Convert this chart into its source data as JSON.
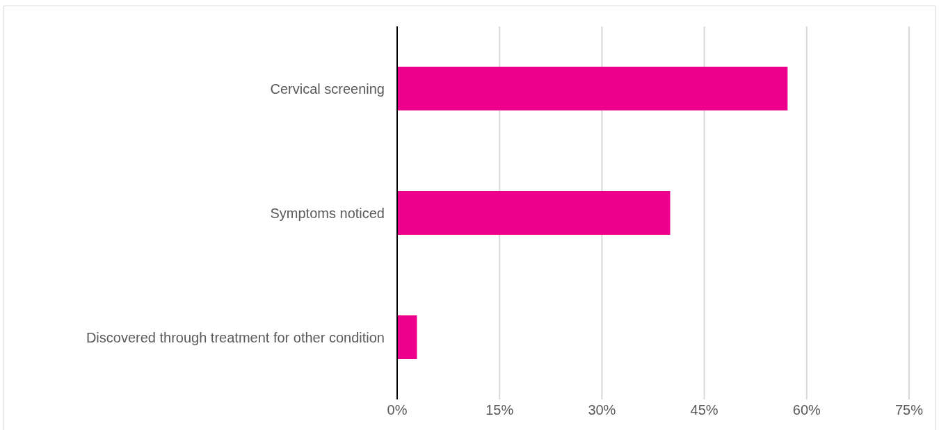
{
  "chart_data": {
    "type": "bar",
    "orientation": "horizontal",
    "categories": [
      "Cervical screening",
      "Symptoms noticed",
      "Discovered through treatment for other condition"
    ],
    "values": [
      57.2,
      40,
      2.9
    ],
    "color": "#ec008c",
    "xlim": [
      0,
      75
    ],
    "xticks": [
      {
        "value": 0,
        "label": "0%"
      },
      {
        "value": 15,
        "label": "15%"
      },
      {
        "value": 30,
        "label": "30%"
      },
      {
        "value": 45,
        "label": "45%"
      },
      {
        "value": 60,
        "label": "60%"
      },
      {
        "value": 75,
        "label": "75%"
      }
    ],
    "grid": "x"
  }
}
